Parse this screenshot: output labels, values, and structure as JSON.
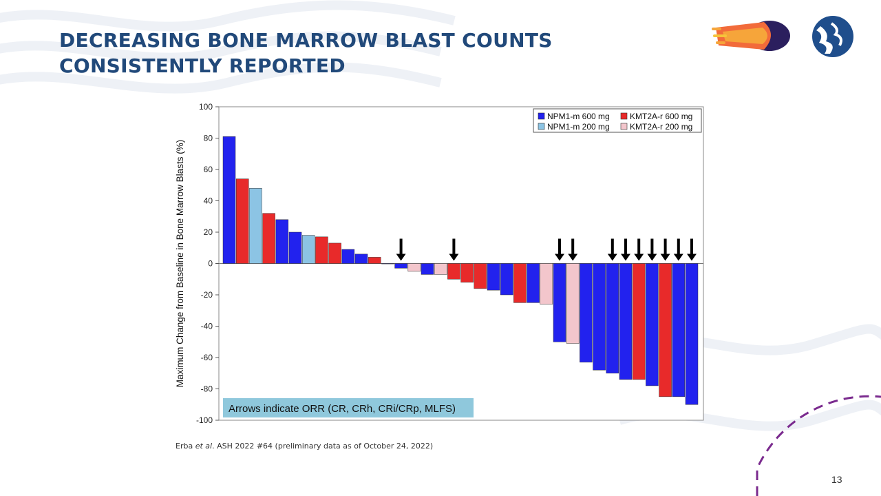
{
  "slide": {
    "title": "DECREASING BONE MARROW BLAST COUNTS CONSISTENTLY REPORTED",
    "citation_author": "Erba ",
    "citation_etal": "et al",
    "citation_rest": ". ASH 2022 #64 (preliminary data as of October 24, 2022)",
    "page_number": "13"
  },
  "chart_data": {
    "type": "bar",
    "title": "",
    "ylabel": "Maximum Change from Baseline in Bone Marrow Blasts (%)",
    "xlabel": "",
    "ylim": [
      -100,
      100
    ],
    "yticks": [
      100,
      80,
      60,
      40,
      20,
      0,
      -20,
      -40,
      -60,
      -80,
      -100
    ],
    "colors": {
      "NPM1-m 600 mg": "#2222ee",
      "KMT2A-r 600 mg": "#e82a2a",
      "NPM1-m 200 mg": "#8cc4e4",
      "KMT2A-r 200 mg": "#f3c6cc"
    },
    "legend": [
      "NPM1-m 600 mg",
      "KMT2A-r 600 mg",
      "NPM1-m 200 mg",
      "KMT2A-r 200 mg"
    ],
    "legend_position": "top-right",
    "annotation": "Arrows indicate ORR (CR, CRh, CRi/CRp, MLFS)",
    "bars": [
      {
        "group": "NPM1-m 600 mg",
        "value": 81,
        "orr": false
      },
      {
        "group": "KMT2A-r 600 mg",
        "value": 54,
        "orr": false
      },
      {
        "group": "NPM1-m 200 mg",
        "value": 48,
        "orr": false
      },
      {
        "group": "KMT2A-r 600 mg",
        "value": 32,
        "orr": false
      },
      {
        "group": "NPM1-m 600 mg",
        "value": 28,
        "orr": false
      },
      {
        "group": "NPM1-m 600 mg",
        "value": 20,
        "orr": false
      },
      {
        "group": "NPM1-m 200 mg",
        "value": 18,
        "orr": false
      },
      {
        "group": "KMT2A-r 600 mg",
        "value": 17,
        "orr": false
      },
      {
        "group": "KMT2A-r 600 mg",
        "value": 13,
        "orr": false
      },
      {
        "group": "NPM1-m 600 mg",
        "value": 9,
        "orr": false
      },
      {
        "group": "NPM1-m 600 mg",
        "value": 6,
        "orr": false
      },
      {
        "group": "KMT2A-r 600 mg",
        "value": 4,
        "orr": false
      },
      {
        "group": "NPM1-m 600 mg",
        "value": 0,
        "orr": false
      },
      {
        "group": "NPM1-m 600 mg",
        "value": -3,
        "orr": true
      },
      {
        "group": "KMT2A-r 200 mg",
        "value": -5,
        "orr": false
      },
      {
        "group": "NPM1-m 600 mg",
        "value": -7,
        "orr": false
      },
      {
        "group": "KMT2A-r 200 mg",
        "value": -7,
        "orr": false
      },
      {
        "group": "KMT2A-r 600 mg",
        "value": -10,
        "orr": true
      },
      {
        "group": "KMT2A-r 600 mg",
        "value": -12,
        "orr": false
      },
      {
        "group": "KMT2A-r 600 mg",
        "value": -16,
        "orr": false
      },
      {
        "group": "NPM1-m 600 mg",
        "value": -17,
        "orr": false
      },
      {
        "group": "NPM1-m 600 mg",
        "value": -20,
        "orr": false
      },
      {
        "group": "KMT2A-r 600 mg",
        "value": -25,
        "orr": false
      },
      {
        "group": "NPM1-m 600 mg",
        "value": -25,
        "orr": false
      },
      {
        "group": "KMT2A-r 200 mg",
        "value": -26,
        "orr": false
      },
      {
        "group": "NPM1-m 600 mg",
        "value": -50,
        "orr": true
      },
      {
        "group": "KMT2A-r 200 mg",
        "value": -51,
        "orr": true
      },
      {
        "group": "NPM1-m 600 mg",
        "value": -63,
        "orr": false
      },
      {
        "group": "NPM1-m 600 mg",
        "value": -68,
        "orr": false
      },
      {
        "group": "NPM1-m 600 mg",
        "value": -70,
        "orr": true
      },
      {
        "group": "NPM1-m 600 mg",
        "value": -74,
        "orr": true
      },
      {
        "group": "KMT2A-r 600 mg",
        "value": -74,
        "orr": true
      },
      {
        "group": "NPM1-m 600 mg",
        "value": -78,
        "orr": true
      },
      {
        "group": "KMT2A-r 600 mg",
        "value": -85,
        "orr": true
      },
      {
        "group": "NPM1-m 600 mg",
        "value": -85,
        "orr": true
      },
      {
        "group": "NPM1-m 600 mg",
        "value": -90,
        "orr": true
      }
    ]
  }
}
